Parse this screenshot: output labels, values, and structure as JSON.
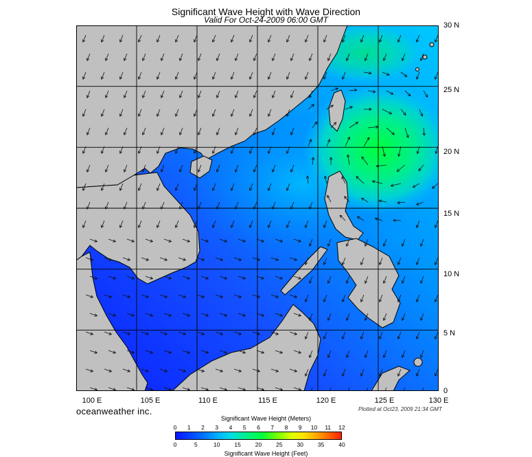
{
  "header": {
    "title": "Significant Wave Height with Wave Direction",
    "subtitle": "Valid For Oct-24-2009 06:00 GMT"
  },
  "map": {
    "region": "South China Sea / Philippines",
    "lon_range": [
      100,
      130
    ],
    "lat_range": [
      0,
      30
    ],
    "lat_labels": [
      "30 N",
      "25 N",
      "20 N",
      "15 N",
      "10 N",
      "5 N",
      "0"
    ],
    "lon_labels": [
      "100 E",
      "105 E",
      "110 E",
      "115 E",
      "120 E",
      "125 E",
      "130 E"
    ],
    "colors": {
      "land": "#c0c0c0",
      "low_wave": "#0a1eff",
      "mid_wave": "#00c8ff",
      "high_wave": "#00ff40",
      "grid": "#000000",
      "arrow": "#000000"
    }
  },
  "footer": {
    "brand": "oceanweather inc.",
    "plotted": "Plotted at Oct23, 2009 21:34 GMT"
  },
  "colorbar": {
    "top_label": "Significant Wave Height (Meters)",
    "bottom_label": "Significant Wave Height (Feet)",
    "meters_ticks": [
      "0",
      "1",
      "2",
      "3",
      "4",
      "5",
      "6",
      "7",
      "8",
      "9",
      "10",
      "11",
      "12"
    ],
    "feet_ticks": [
      "0",
      "5",
      "10",
      "15",
      "20",
      "25",
      "30",
      "35",
      "40"
    ]
  }
}
